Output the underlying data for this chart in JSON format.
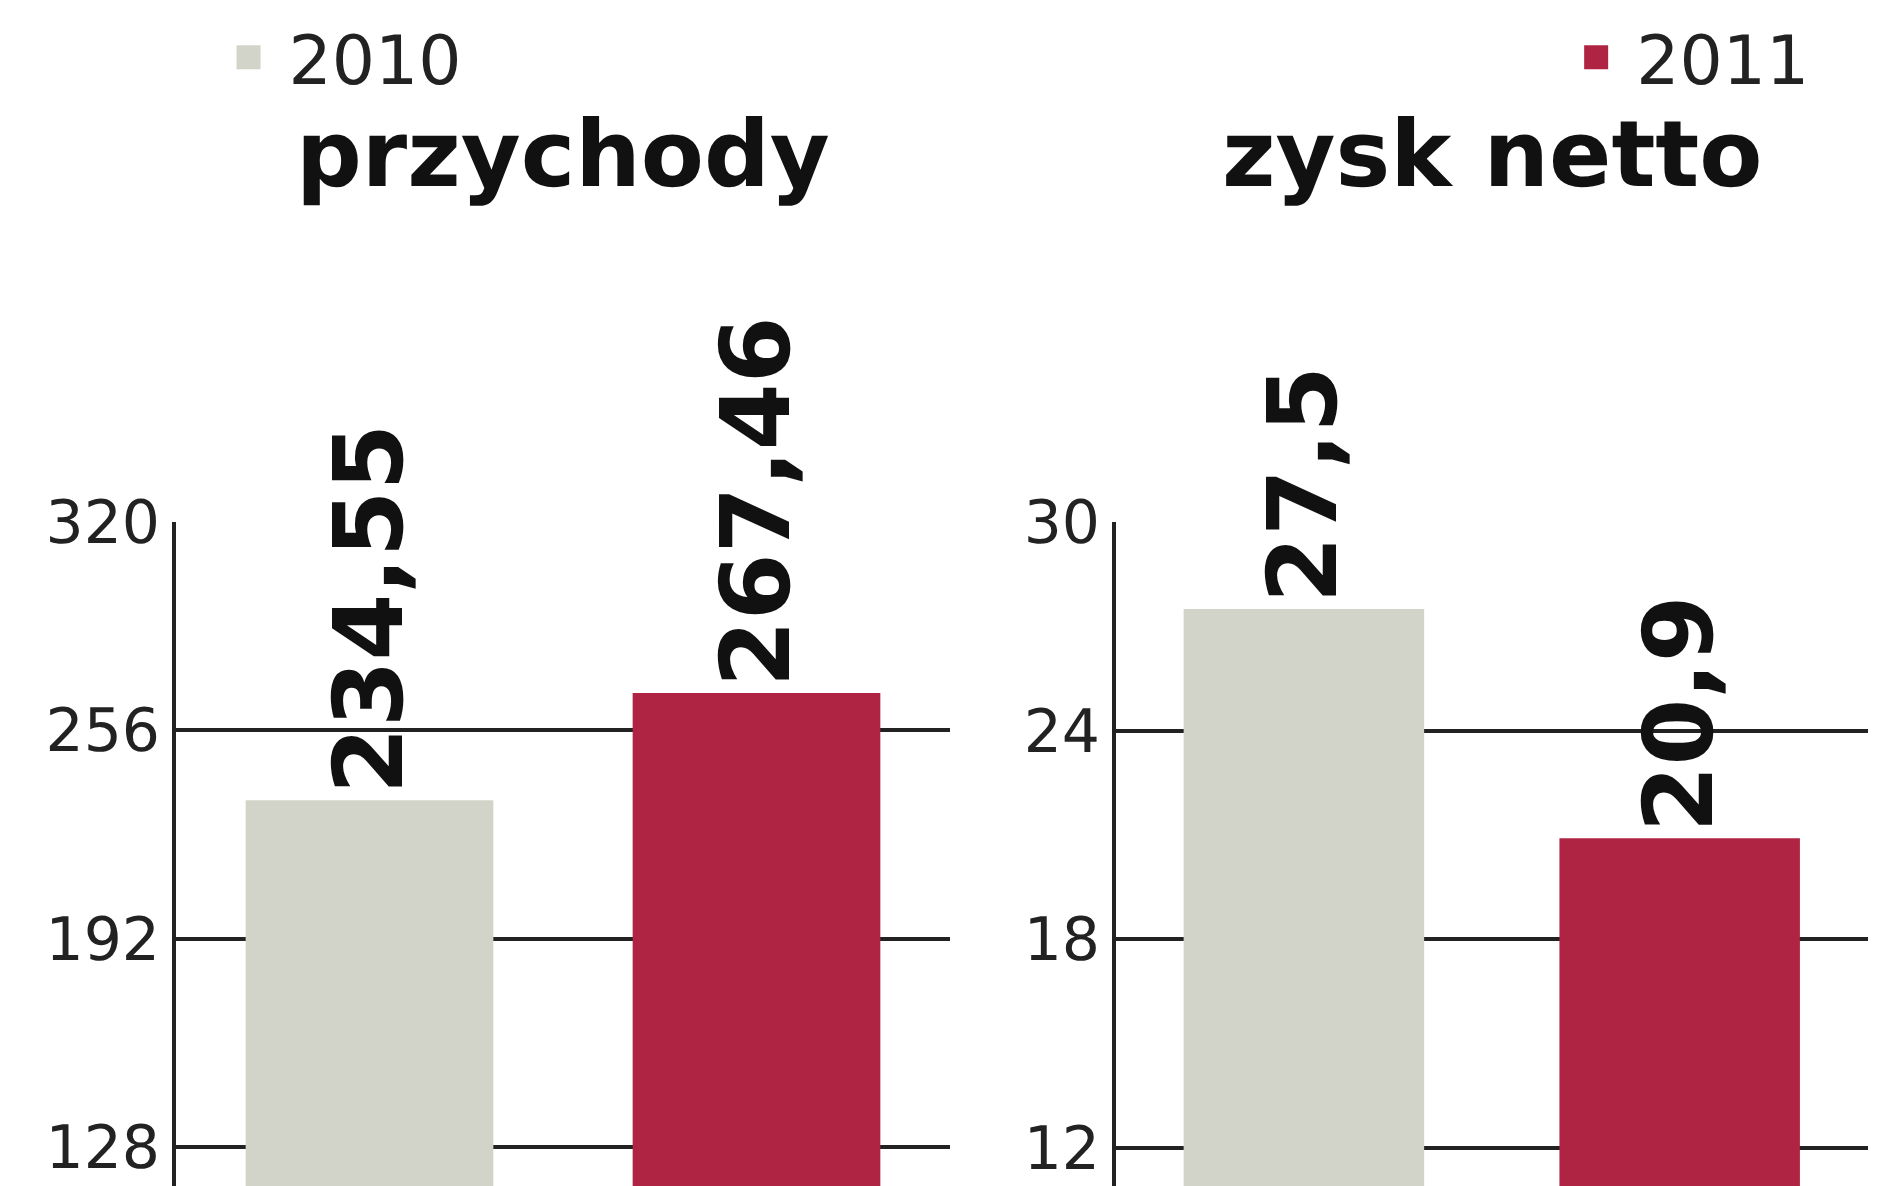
{
  "chart_data": [
    {
      "type": "bar",
      "title": "przychody",
      "categories": [
        null
      ],
      "ylim": [
        116,
        320
      ],
      "yticks": [
        128,
        192,
        256,
        320
      ],
      "grid": "y",
      "legend": "top",
      "series": [
        {
          "name": "2010",
          "color": "#d3d4c9",
          "values": [
            234.55
          ],
          "value_labels": [
            "234,55"
          ]
        },
        {
          "name": "2011",
          "color": "#b02443",
          "values": [
            267.46
          ],
          "value_labels": [
            "267,46"
          ]
        }
      ]
    },
    {
      "type": "bar",
      "title": "zysk netto",
      "categories": [
        null
      ],
      "ylim": [
        10.9,
        30
      ],
      "yticks": [
        12,
        18,
        24,
        30
      ],
      "grid": "y",
      "series": [
        {
          "color": "#d3d4c9",
          "values": [
            27.5
          ],
          "value_labels": [
            "27,5"
          ]
        },
        {
          "color": "#b02443",
          "values": [
            20.9
          ],
          "value_labels": [
            "20,9"
          ]
        }
      ]
    }
  ]
}
